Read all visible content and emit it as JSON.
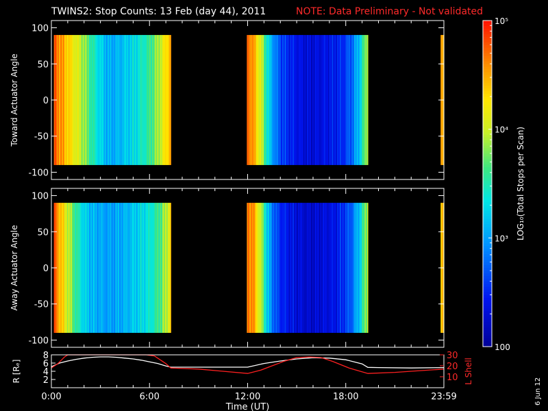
{
  "header": {
    "title": "TWINS2: Stop Counts: 13 Feb (day  44), 2011",
    "note": "NOTE: Data Preliminary - Not validated"
  },
  "side_date": "6 Jun 12",
  "colors": {
    "note": "#ff2a2a",
    "r_line": "#ffffff",
    "lshell_line": "#ff2020"
  },
  "chart_data": [
    {
      "type": "heatmap",
      "name": "toward",
      "ylabel": "Toward Actuator Angle",
      "ylim": [
        -110,
        110
      ],
      "yticks": [
        100,
        50,
        0,
        -50,
        -100
      ],
      "x_ticks": [
        "0:00",
        "6:00",
        "12:00",
        "18:00",
        "23:59"
      ],
      "x_range_hours": [
        0,
        24
      ],
      "data_intervals_hours": [
        [
          0.15,
          7.3
        ],
        [
          11.95,
          19.35
        ],
        [
          23.8,
          24.0
        ]
      ],
      "angle_range": [
        -90,
        90
      ],
      "cmap_log_range": [
        2,
        5
      ],
      "profile_hours": [
        0.2,
        0.5,
        1.0,
        1.5,
        2.0,
        2.5,
        3.0,
        3.5,
        4.0,
        4.5,
        5.0,
        5.5,
        6.0,
        6.5,
        7.0,
        7.3,
        12.0,
        12.3,
        12.8,
        13.3,
        13.8,
        14.3,
        14.8,
        15.3,
        15.8,
        16.3,
        16.8,
        17.3,
        17.8,
        18.3,
        18.8,
        19.3,
        23.9
      ],
      "profile_log_counts": [
        4.75,
        4.6,
        4.35,
        4.1,
        3.85,
        3.5,
        3.25,
        3.05,
        3.1,
        3.2,
        3.3,
        3.45,
        3.6,
        3.9,
        4.3,
        4.6,
        4.75,
        4.55,
        4.0,
        3.2,
        2.75,
        2.55,
        2.45,
        2.35,
        2.3,
        2.35,
        2.4,
        2.45,
        2.55,
        2.75,
        3.2,
        4.0,
        4.5
      ]
    },
    {
      "type": "heatmap",
      "name": "away",
      "ylabel": "Away Actuator Angle",
      "ylim": [
        -110,
        110
      ],
      "yticks": [
        100,
        50,
        0,
        -50,
        -100
      ],
      "x_ticks": [
        "0:00",
        "6:00",
        "12:00",
        "18:00",
        "23:59"
      ],
      "x_range_hours": [
        0,
        24
      ],
      "data_intervals_hours": [
        [
          0.15,
          7.3
        ],
        [
          11.95,
          19.35
        ],
        [
          23.8,
          24.0
        ]
      ],
      "angle_range": [
        -90,
        90
      ],
      "cmap_log_range": [
        2,
        5
      ],
      "profile_hours": [
        0.2,
        0.5,
        1.0,
        1.5,
        2.0,
        2.5,
        3.0,
        3.5,
        4.0,
        4.5,
        5.0,
        5.5,
        6.0,
        6.5,
        7.0,
        7.3,
        12.0,
        12.3,
        12.8,
        13.3,
        13.8,
        14.3,
        14.8,
        15.3,
        15.8,
        16.3,
        16.8,
        17.3,
        17.8,
        18.3,
        18.8,
        19.3,
        23.9
      ],
      "profile_log_counts": [
        4.75,
        4.45,
        4.0,
        3.55,
        3.25,
        3.1,
        3.05,
        3.0,
        3.05,
        3.1,
        3.2,
        3.3,
        3.4,
        3.6,
        3.95,
        4.4,
        4.7,
        4.6,
        3.9,
        3.0,
        2.6,
        2.45,
        2.35,
        2.3,
        2.25,
        2.3,
        2.35,
        2.4,
        2.55,
        2.75,
        3.2,
        4.0,
        4.4
      ]
    },
    {
      "type": "line",
      "name": "ephemeris",
      "xlabel": "Time (UT)",
      "x_ticks": [
        "0:00",
        "6:00",
        "12:00",
        "18:00",
        "23:59"
      ],
      "ylabel_left": "R [Rₑ]",
      "ylabel_right": "L Shell",
      "ylim_left": [
        0,
        8
      ],
      "ylim_right": [
        0,
        30
      ],
      "yticks_left": [
        2,
        4,
        6,
        8
      ],
      "yticks_right": [
        10,
        20,
        30
      ],
      "series": [
        {
          "name": "R [Rₑ]",
          "x_hours": [
            0,
            0.5,
            1,
            1.5,
            2,
            2.5,
            3,
            3.5,
            4,
            4.5,
            5,
            5.5,
            6,
            6.5,
            7,
            7.3,
            8,
            10,
            12,
            13,
            14,
            15,
            16,
            17,
            18,
            19,
            19.35,
            20,
            22,
            24
          ],
          "values": [
            5.1,
            6.0,
            6.5,
            6.9,
            7.2,
            7.4,
            7.5,
            7.5,
            7.4,
            7.2,
            7.0,
            6.7,
            6.3,
            5.9,
            5.3,
            5.0,
            5.0,
            5.0,
            5.0,
            5.9,
            6.5,
            7.0,
            7.3,
            7.2,
            6.8,
            5.8,
            4.95,
            4.9,
            4.8,
            4.9
          ]
        },
        {
          "name": "L Shell",
          "x_hours": [
            0,
            0.4,
            0.8,
            1.0,
            5.8,
            6.3,
            7.0,
            7.3,
            9,
            10.5,
            12,
            12.8,
            13.5,
            14.2,
            15,
            15.8,
            16.5,
            17.2,
            18.2,
            19.35,
            21,
            23,
            24
          ],
          "values": [
            18,
            22,
            28,
            30,
            30,
            29,
            22,
            18,
            17,
            15,
            13,
            16,
            20,
            24,
            27.5,
            28,
            27.5,
            24,
            18,
            13,
            14,
            16,
            17
          ]
        }
      ]
    }
  ],
  "colorbar": {
    "label": "LOG₁₀(Total Stops per Scan)",
    "ticks": [
      {
        "log": 5,
        "text": "10⁵"
      },
      {
        "log": 4,
        "text": "10⁴"
      },
      {
        "log": 3,
        "text": "10³"
      },
      {
        "log": 2,
        "text": "100"
      }
    ]
  }
}
